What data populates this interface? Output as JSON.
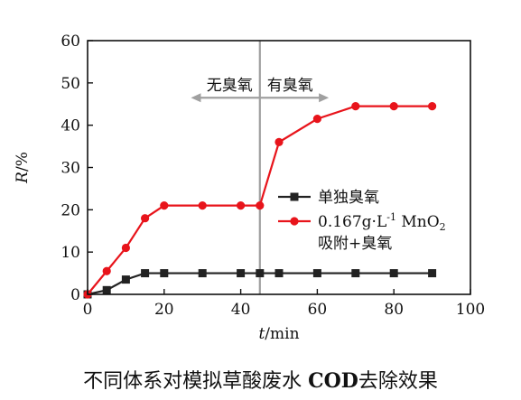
{
  "chart_data": {
    "type": "line",
    "xlabel_italic": "t",
    "xlabel_unit": "/min",
    "ylabel_italic": "R",
    "ylabel_unit": "/%",
    "xlim": [
      0,
      100
    ],
    "ylim": [
      0,
      60
    ],
    "x_ticks": [
      0,
      20,
      40,
      60,
      80,
      100
    ],
    "y_ticks": [
      0,
      10,
      20,
      30,
      40,
      50,
      60
    ],
    "grid": false,
    "legend_position": "center-right",
    "series": [
      {
        "name": "单独臭氧",
        "color": "#222222",
        "marker": "square",
        "x": [
          0,
          5,
          10,
          15,
          20,
          30,
          40,
          45,
          50,
          60,
          70,
          80,
          90
        ],
        "y": [
          0,
          1,
          3.5,
          5,
          5,
          5,
          5,
          5,
          5,
          5,
          5,
          5,
          5
        ]
      },
      {
        "name": "0.167g·L⁻¹ MnO₂ 吸附+臭氧",
        "legend_line1_main": "0.167g·L",
        "legend_line1_sup": "-1",
        "legend_line1_after": " MnO",
        "legend_line1_sub": "2",
        "legend_line2": "吸附+臭氧",
        "color": "#e8141b",
        "marker": "circle",
        "x": [
          0,
          5,
          10,
          15,
          20,
          30,
          40,
          45,
          50,
          60,
          70,
          80,
          90
        ],
        "y": [
          0,
          5.5,
          11,
          18,
          21,
          21,
          21,
          21,
          36,
          41.5,
          44.5,
          44.5,
          44.5
        ]
      }
    ],
    "annotations": {
      "divider_x": 45,
      "divider_color": "#a0a0a0",
      "left_label": "无臭氧",
      "right_label": "有臭氧",
      "arrow_y": 46.5,
      "arrow_left_x": 27,
      "arrow_right_x": 63
    }
  },
  "caption": {
    "prefix": "不同体系对模拟草酸废水 ",
    "bold": "COD",
    "suffix": "去除效果"
  }
}
